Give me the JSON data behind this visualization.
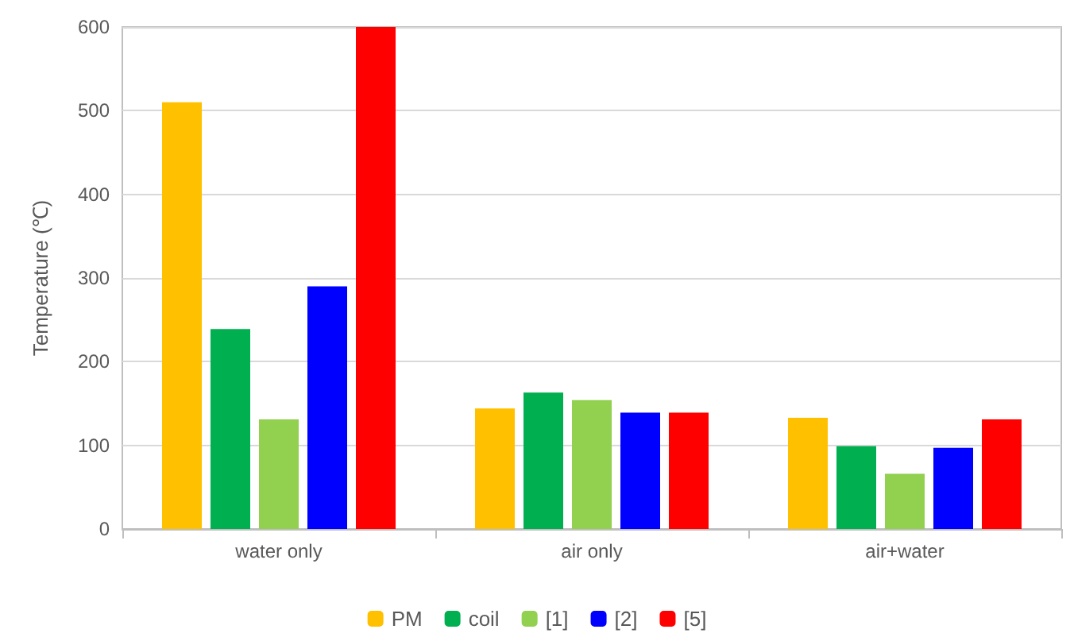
{
  "chart_data": {
    "type": "bar",
    "ylabel": "Temperature (℃)",
    "categories": [
      "water only",
      "air only",
      "air+water"
    ],
    "series": [
      {
        "name": "PM",
        "color": "#ffc000",
        "values": [
          510,
          144,
          133
        ]
      },
      {
        "name": "coil",
        "color": "#00b050",
        "values": [
          239,
          163,
          99
        ]
      },
      {
        "name": "[1]",
        "color": "#92d050",
        "values": [
          131,
          154,
          66
        ]
      },
      {
        "name": "[2]",
        "color": "#0000ff",
        "values": [
          290,
          139,
          97
        ]
      },
      {
        "name": "[5]",
        "color": "#ff0000",
        "values": [
          600,
          139,
          131
        ]
      }
    ],
    "ylim": [
      0,
      600
    ],
    "yticks": [
      0,
      100,
      200,
      300,
      400,
      500,
      600
    ],
    "grid": "y",
    "legend": "bottom"
  }
}
